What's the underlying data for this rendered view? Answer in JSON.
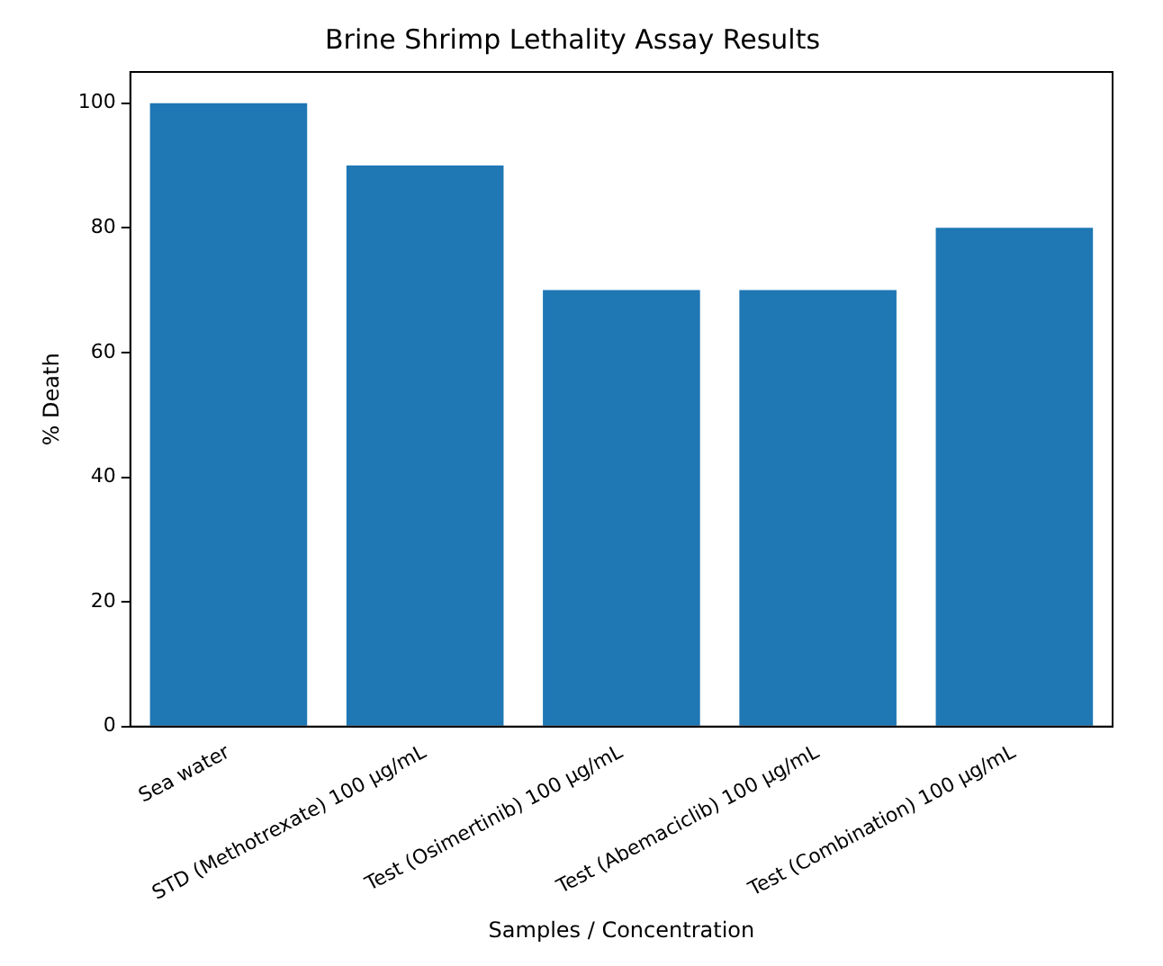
{
  "chart_data": {
    "type": "bar",
    "title": "Brine Shrimp Lethality Assay Results",
    "xlabel": "Samples / Concentration",
    "ylabel": "% Death",
    "categories": [
      "Sea water",
      "STD (Methotrexate) 100 µg/mL",
      "Test (Osimertinib) 100 µg/mL",
      "Test (Abemaciclib) 100 µg/mL",
      "Test (Combination) 100 µg/mL"
    ],
    "values": [
      100,
      90,
      70,
      70,
      80
    ],
    "color": "#1f77b4",
    "ylim": [
      0,
      105
    ],
    "yticks": [
      0,
      20,
      40,
      60,
      80,
      100
    ],
    "grid": false,
    "legend": false
  }
}
